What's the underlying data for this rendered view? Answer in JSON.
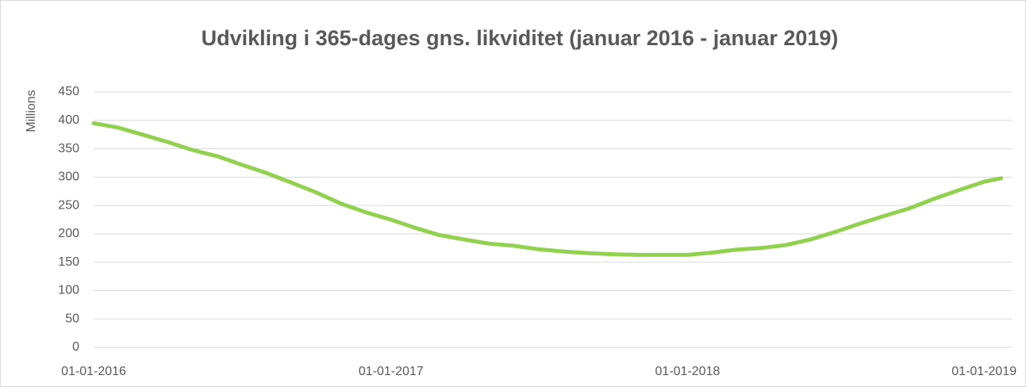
{
  "chart_data": {
    "type": "line",
    "title": "Udvikling i 365-dages gns. likviditet (januar 2016 - januar 2019)",
    "y_label": "Millions",
    "x": [
      "2016-01-01",
      "2016-02-01",
      "2016-03-01",
      "2016-04-01",
      "2016-05-01",
      "2016-06-01",
      "2016-07-01",
      "2016-08-01",
      "2016-09-01",
      "2016-10-01",
      "2016-11-01",
      "2016-12-01",
      "2017-01-01",
      "2017-02-01",
      "2017-03-01",
      "2017-04-01",
      "2017-05-01",
      "2017-06-01",
      "2017-07-01",
      "2017-08-01",
      "2017-09-01",
      "2017-10-01",
      "2017-11-01",
      "2017-12-01",
      "2018-01-01",
      "2018-02-01",
      "2018-03-01",
      "2018-04-01",
      "2018-05-01",
      "2018-06-01",
      "2018-07-01",
      "2018-08-01",
      "2018-09-01",
      "2018-10-01",
      "2018-11-01",
      "2018-12-01",
      "2019-01-01",
      "2019-01-22"
    ],
    "series": [
      {
        "name": "Likviditet",
        "color": "#92d050",
        "values": [
          395,
          387,
          375,
          362,
          348,
          337,
          322,
          307,
          290,
          273,
          253,
          238,
          225,
          210,
          198,
          190,
          183,
          179,
          173,
          169,
          166,
          164,
          163,
          163,
          163,
          167,
          172,
          175,
          180,
          190,
          203,
          218,
          232,
          245,
          262,
          277,
          292,
          298
        ]
      }
    ],
    "xlim": [
      "2016-01-01",
      "2019-02-04"
    ],
    "xticks": [
      {
        "value": "2016-01-01",
        "label": "01-01-2016"
      },
      {
        "value": "2017-01-01",
        "label": "01-01-2017"
      },
      {
        "value": "2018-01-01",
        "label": "01-01-2018"
      },
      {
        "value": "2019-01-01",
        "label": "01-01-2019"
      }
    ],
    "ylim": [
      0,
      450
    ],
    "yticks": [
      0,
      50,
      100,
      150,
      200,
      250,
      300,
      350,
      400,
      450
    ],
    "grid": true
  }
}
